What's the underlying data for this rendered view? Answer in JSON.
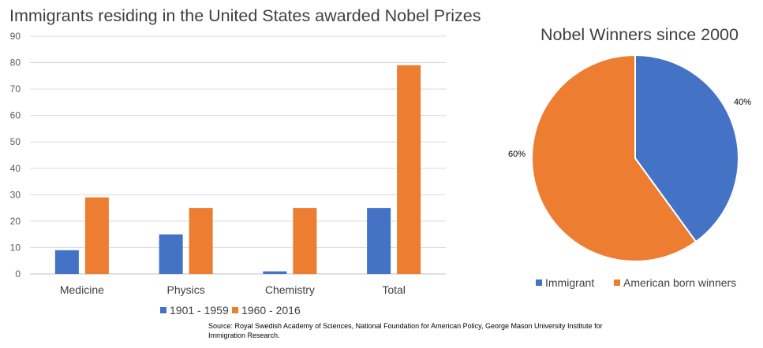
{
  "chart_data": [
    {
      "type": "bar",
      "title": "Immigrants residing in the United States awarded Nobel Prizes",
      "categories": [
        "Medicine",
        "Physics",
        "Chemistry",
        "Total"
      ],
      "series": [
        {
          "name": "1901 - 1959",
          "values": [
            9,
            15,
            1,
            25
          ],
          "color": "#4472C4"
        },
        {
          "name": "1960 - 2016",
          "values": [
            29,
            25,
            25,
            79
          ],
          "color": "#ED7D31"
        }
      ],
      "ylim": [
        0,
        90
      ],
      "yticks": [
        0,
        10,
        20,
        30,
        40,
        50,
        60,
        70,
        80,
        90
      ],
      "grid": true,
      "legend": "bottom"
    },
    {
      "type": "pie",
      "title": "Nobel Winners since 2000",
      "slices": [
        {
          "name": "Immigrant",
          "value": 40,
          "label": "40%",
          "color": "#4472C4"
        },
        {
          "name": "American born winners",
          "value": 60,
          "label": "60%",
          "color": "#ED7D31"
        }
      ],
      "legend": "bottom"
    }
  ],
  "source": "Source: Royal Swedish Academy of Sciences, National Foundation for American Policy, George Mason University Institute for Immigration Research."
}
